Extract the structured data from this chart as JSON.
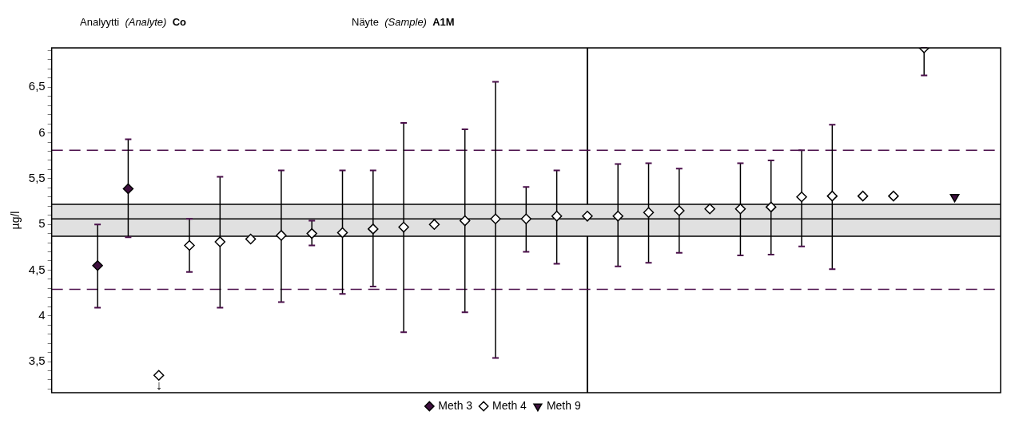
{
  "chart_data": {
    "type": "scatter",
    "title": "Analyytti (Analyte) Co",
    "subtitle": "Näyte (Sample) A1M",
    "ylabel": "µg/l",
    "categories": [
      null,
      null,
      null,
      null,
      null,
      null,
      null,
      null,
      null,
      null,
      null,
      null,
      null,
      null,
      null,
      null,
      null,
      null,
      null,
      null,
      null,
      null,
      null,
      null,
      null,
      null,
      null,
      null,
      null,
      null,
      null
    ],
    "tick_labels": "y",
    "grid": false,
    "legend": "bottom",
    "ylim": [
      3.16,
      6.93
    ],
    "yticks": [
      {
        "value": 3.2,
        "label": null
      },
      {
        "value": 3.3,
        "label": null
      },
      {
        "value": 3.4,
        "label": null
      },
      {
        "value": 3.5,
        "label": "3,5"
      },
      {
        "value": 3.6,
        "label": null
      },
      {
        "value": 3.7,
        "label": null
      },
      {
        "value": 3.8,
        "label": null
      },
      {
        "value": 3.9,
        "label": null
      },
      4,
      {
        "value": 4.1,
        "label": null
      },
      {
        "value": 4.2,
        "label": null
      },
      {
        "value": 4.3,
        "label": null
      },
      {
        "value": 4.4,
        "label": null
      },
      {
        "value": 4.5,
        "label": "4,5"
      },
      {
        "value": 4.6,
        "label": null
      },
      {
        "value": 4.7,
        "label": null
      },
      {
        "value": 4.8,
        "label": null
      },
      {
        "value": 4.9,
        "label": null
      },
      5,
      {
        "value": 5.1,
        "label": null
      },
      {
        "value": 5.2,
        "label": null
      },
      {
        "value": 5.3,
        "label": null
      },
      {
        "value": 5.4,
        "label": null
      },
      {
        "value": 5.5,
        "label": "5,5"
      },
      {
        "value": 5.6,
        "label": null
      },
      {
        "value": 5.7,
        "label": null
      },
      {
        "value": 5.8,
        "label": null
      },
      {
        "value": 5.9,
        "label": null
      },
      6,
      {
        "value": 6.1,
        "label": null
      },
      {
        "value": 6.2,
        "label": null
      },
      {
        "value": 6.3,
        "label": null
      },
      {
        "value": 6.4,
        "label": null
      },
      {
        "value": 6.5,
        "label": "6,5"
      },
      {
        "value": 6.6,
        "label": null
      },
      {
        "value": 6.7,
        "label": null
      },
      {
        "value": 6.8,
        "label": null
      },
      {
        "value": 6.9,
        "label": null
      }
    ],
    "bands": [
      {
        "axis": "y",
        "from": 4.87,
        "to": 5.22,
        "color": "#e0e0e0"
      }
    ],
    "ref_lines": [
      {
        "axis": "y",
        "value": 5.06,
        "color": "#000000",
        "line_style": "solid"
      },
      {
        "axis": "y",
        "value": 4.87,
        "color": "#000000",
        "line_style": "solid"
      },
      {
        "axis": "y",
        "value": 5.22,
        "color": "#000000",
        "line_style": "solid"
      },
      {
        "axis": "y",
        "value": 5.81,
        "color": "#4b0f4b",
        "line_style": "dashed"
      },
      {
        "axis": "y",
        "value": 4.29,
        "color": "#4b0f4b",
        "line_style": "dashed"
      }
    ],
    "series": [
      {
        "name": "Meth 3",
        "color": "#3f0f3f",
        "marker": "diamond",
        "values": [
          null,
          4.55,
          5.39,
          null,
          null,
          null,
          null,
          null,
          null,
          null,
          null,
          null,
          null,
          null,
          null,
          null,
          null,
          null,
          null,
          null,
          null,
          null,
          null,
          null,
          null,
          null,
          null,
          null,
          null,
          null,
          null
        ],
        "errors": [
          null,
          [
            4.09,
            5.0
          ],
          [
            4.86,
            5.93
          ],
          null,
          null,
          null,
          null,
          null,
          null,
          null,
          null,
          null,
          null,
          null,
          null,
          null,
          null,
          null,
          null,
          null,
          null,
          null,
          null,
          null,
          null,
          null,
          null,
          null,
          null,
          null,
          null
        ]
      },
      {
        "name": "Meth 4",
        "color": "#ffffff",
        "marker": "diamond",
        "values": [
          null,
          null,
          null,
          3.35,
          4.77,
          4.81,
          4.84,
          4.88,
          4.9,
          4.91,
          4.95,
          4.97,
          5.0,
          5.04,
          5.06,
          5.06,
          5.09,
          5.09,
          5.09,
          5.13,
          5.15,
          5.17,
          5.17,
          5.19,
          5.3,
          5.31,
          5.31,
          5.31,
          6.93,
          null,
          null
        ],
        "value_labels": [
          null,
          null,
          null,
          "↓",
          null,
          null,
          null,
          null,
          null,
          null,
          null,
          null,
          null,
          null,
          null,
          null,
          null,
          null,
          null,
          null,
          null,
          null,
          null,
          null,
          null,
          null,
          null,
          null,
          null,
          null,
          null
        ],
        "errors": [
          null,
          null,
          null,
          null,
          [
            4.48,
            5.06
          ],
          [
            4.09,
            5.52
          ],
          null,
          [
            4.15,
            5.59
          ],
          [
            4.77,
            5.04
          ],
          [
            4.24,
            5.59
          ],
          [
            4.32,
            5.59
          ],
          [
            3.82,
            6.11
          ],
          null,
          [
            4.04,
            6.04
          ],
          [
            3.54,
            6.56
          ],
          [
            4.7,
            5.41
          ],
          [
            4.57,
            5.59
          ],
          null,
          [
            4.54,
            5.66
          ],
          [
            4.58,
            5.67
          ],
          [
            4.69,
            5.61
          ],
          null,
          [
            4.66,
            5.67
          ],
          [
            4.67,
            5.7
          ],
          [
            4.76,
            5.81
          ],
          [
            4.51,
            6.09
          ],
          null,
          null,
          [
            6.63,
            6.93
          ],
          null,
          null
        ]
      },
      {
        "name": "Meth 9",
        "color": "#3f0f3f",
        "marker": "triangle",
        "values": [
          null,
          null,
          null,
          null,
          null,
          null,
          null,
          null,
          null,
          null,
          null,
          null,
          null,
          null,
          null,
          null,
          null,
          null,
          null,
          null,
          null,
          null,
          null,
          null,
          null,
          null,
          null,
          null,
          null,
          5.3,
          null
        ]
      }
    ]
  }
}
